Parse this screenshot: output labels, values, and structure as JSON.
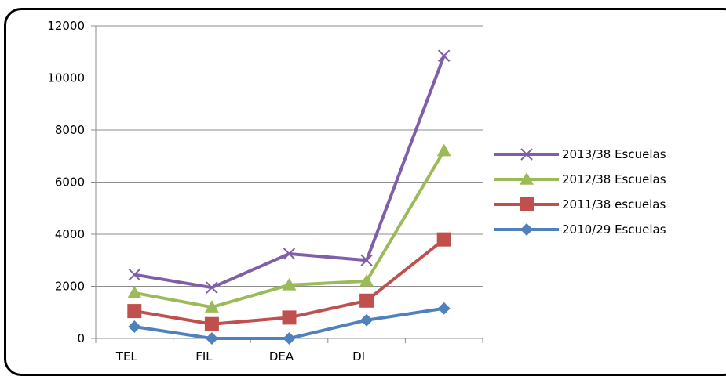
{
  "chart_data": {
    "type": "line",
    "categories": [
      "TEL",
      "FIL",
      "DEA",
      "DI",
      ""
    ],
    "ylim": [
      0,
      12000
    ],
    "yticks": [
      0,
      2000,
      4000,
      6000,
      8000,
      10000,
      12000
    ],
    "grid": true,
    "legend_position": "right",
    "series": [
      {
        "name": "2013/38 Escuelas",
        "color": "#7f5fa8",
        "marker": "x",
        "values": [
          2450,
          1950,
          3250,
          3000,
          10850
        ]
      },
      {
        "name": "2012/38 Escuelas",
        "color": "#9bbb59",
        "marker": "triangle",
        "values": [
          1750,
          1200,
          2050,
          2200,
          7200
        ]
      },
      {
        "name": "2011/38 escuelas",
        "color": "#c0504d",
        "marker": "square",
        "values": [
          1050,
          550,
          800,
          1450,
          3800
        ]
      },
      {
        "name": "2010/29 Escuelas",
        "color": "#4f81bd",
        "marker": "diamond",
        "values": [
          450,
          0,
          0,
          700,
          1150
        ]
      }
    ]
  }
}
